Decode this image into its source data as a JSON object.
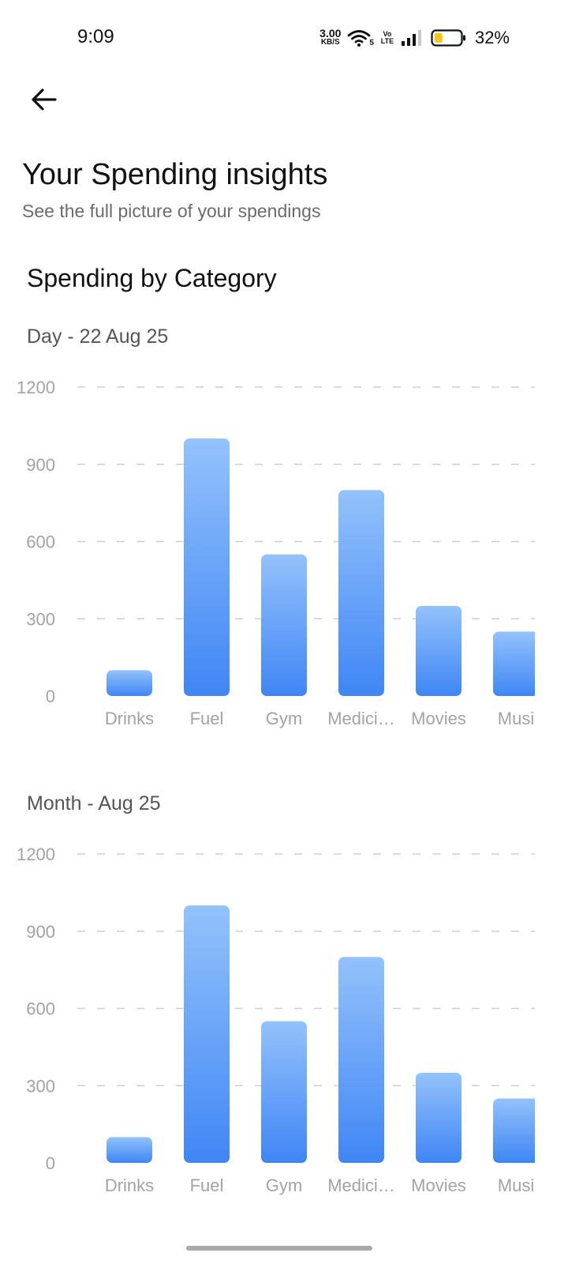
{
  "status_bar": {
    "time": "9:09",
    "net_speed_value": "3.00",
    "net_speed_unit": "KB/S",
    "network_badge": "5",
    "volte_label": "Vo LTE",
    "battery_percent": "32%",
    "battery_level": 0.32,
    "battery_color": "#f5c518"
  },
  "header": {
    "back_icon": "arrow-left-icon"
  },
  "page": {
    "title": "Your Spending insights",
    "subtitle": "See the full picture of your spendings",
    "section_title": "Spending by Category"
  },
  "bar_gradient": {
    "top": "#93c2fb",
    "bottom": "#3f86f5"
  },
  "chart_data": [
    {
      "type": "bar",
      "title": "Day - 22 Aug 25",
      "categories": [
        "Drinks",
        "Fuel",
        "Gym",
        "Medici…",
        "Movies",
        "Musi"
      ],
      "values": [
        100,
        1000,
        550,
        800,
        350,
        250
      ],
      "y_ticks": [
        "0",
        "300",
        "600",
        "900",
        "1200"
      ],
      "ylim": [
        0,
        1200
      ],
      "grid": true
    },
    {
      "type": "bar",
      "title": "Month - Aug 25",
      "categories": [
        "Drinks",
        "Fuel",
        "Gym",
        "Medici…",
        "Movies",
        "Musi"
      ],
      "values": [
        100,
        1000,
        550,
        800,
        350,
        250
      ],
      "y_ticks": [
        "0",
        "300",
        "600",
        "900",
        "1200"
      ],
      "ylim": [
        0,
        1200
      ],
      "grid": true
    }
  ]
}
